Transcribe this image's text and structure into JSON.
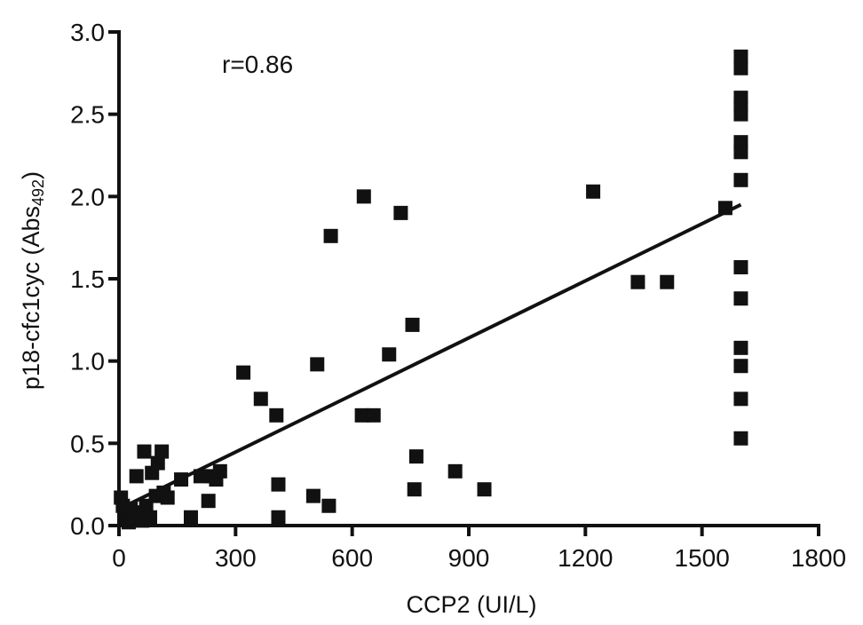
{
  "chart_data": {
    "type": "scatter",
    "xlabel": "CCP2 (UI/L)",
    "ylabel_main": "p18-cfc1cyc (Abs",
    "ylabel_sub": "492",
    "ylabel_close": ")",
    "annotation": "r=0.86",
    "xlim": [
      0,
      1800
    ],
    "ylim": [
      0,
      3.0
    ],
    "x_ticks": [
      0,
      300,
      600,
      900,
      1200,
      1500,
      1800
    ],
    "x_tick_labels": [
      "0",
      "300",
      "600",
      "900",
      "1200",
      "1500",
      "1800"
    ],
    "y_ticks": [
      0,
      0.5,
      1.0,
      1.5,
      2.0,
      2.5,
      3.0
    ],
    "y_tick_labels": [
      "0.0",
      "0.5",
      "1.0",
      "1.5",
      "2.0",
      "2.5",
      "3.0"
    ],
    "grid": false,
    "marker": "square",
    "marker_color": "#111111",
    "line_color": "#111111",
    "points": [
      {
        "x": 5,
        "y": 0.17
      },
      {
        "x": 10,
        "y": 0.12
      },
      {
        "x": 15,
        "y": 0.08
      },
      {
        "x": 20,
        "y": 0.05
      },
      {
        "x": 25,
        "y": 0.02
      },
      {
        "x": 30,
        "y": 0.1
      },
      {
        "x": 40,
        "y": 0.05
      },
      {
        "x": 45,
        "y": 0.3
      },
      {
        "x": 50,
        "y": 0.08
      },
      {
        "x": 60,
        "y": 0.03
      },
      {
        "x": 65,
        "y": 0.45
      },
      {
        "x": 70,
        "y": 0.12
      },
      {
        "x": 80,
        "y": 0.05
      },
      {
        "x": 85,
        "y": 0.32
      },
      {
        "x": 95,
        "y": 0.18
      },
      {
        "x": 100,
        "y": 0.38
      },
      {
        "x": 110,
        "y": 0.45
      },
      {
        "x": 115,
        "y": 0.2
      },
      {
        "x": 125,
        "y": 0.17
      },
      {
        "x": 160,
        "y": 0.28
      },
      {
        "x": 185,
        "y": 0.05
      },
      {
        "x": 210,
        "y": 0.3
      },
      {
        "x": 230,
        "y": 0.15
      },
      {
        "x": 240,
        "y": 0.3
      },
      {
        "x": 250,
        "y": 0.28
      },
      {
        "x": 260,
        "y": 0.33
      },
      {
        "x": 320,
        "y": 0.93
      },
      {
        "x": 365,
        "y": 0.77
      },
      {
        "x": 405,
        "y": 0.67
      },
      {
        "x": 410,
        "y": 0.25
      },
      {
        "x": 410,
        "y": 0.05
      },
      {
        "x": 500,
        "y": 0.18
      },
      {
        "x": 510,
        "y": 0.98
      },
      {
        "x": 540,
        "y": 0.12
      },
      {
        "x": 545,
        "y": 1.76
      },
      {
        "x": 625,
        "y": 0.67
      },
      {
        "x": 630,
        "y": 2.0
      },
      {
        "x": 655,
        "y": 0.67
      },
      {
        "x": 695,
        "y": 1.04
      },
      {
        "x": 725,
        "y": 1.9
      },
      {
        "x": 755,
        "y": 1.22
      },
      {
        "x": 760,
        "y": 0.22
      },
      {
        "x": 765,
        "y": 0.42
      },
      {
        "x": 865,
        "y": 0.33
      },
      {
        "x": 940,
        "y": 0.22
      },
      {
        "x": 1220,
        "y": 2.03
      },
      {
        "x": 1335,
        "y": 1.48
      },
      {
        "x": 1410,
        "y": 1.48
      },
      {
        "x": 1560,
        "y": 1.93
      },
      {
        "x": 1600,
        "y": 2.85
      },
      {
        "x": 1600,
        "y": 2.78
      },
      {
        "x": 1600,
        "y": 2.6
      },
      {
        "x": 1600,
        "y": 2.55
      },
      {
        "x": 1600,
        "y": 2.5
      },
      {
        "x": 1600,
        "y": 2.33
      },
      {
        "x": 1600,
        "y": 2.27
      },
      {
        "x": 1600,
        "y": 2.1
      },
      {
        "x": 1600,
        "y": 1.57
      },
      {
        "x": 1600,
        "y": 1.38
      },
      {
        "x": 1600,
        "y": 1.08
      },
      {
        "x": 1600,
        "y": 0.97
      },
      {
        "x": 1600,
        "y": 0.77
      },
      {
        "x": 1600,
        "y": 0.53
      }
    ],
    "regression_line": {
      "x1": 0,
      "y1": 0.1,
      "x2": 1600,
      "y2": 1.95
    }
  }
}
